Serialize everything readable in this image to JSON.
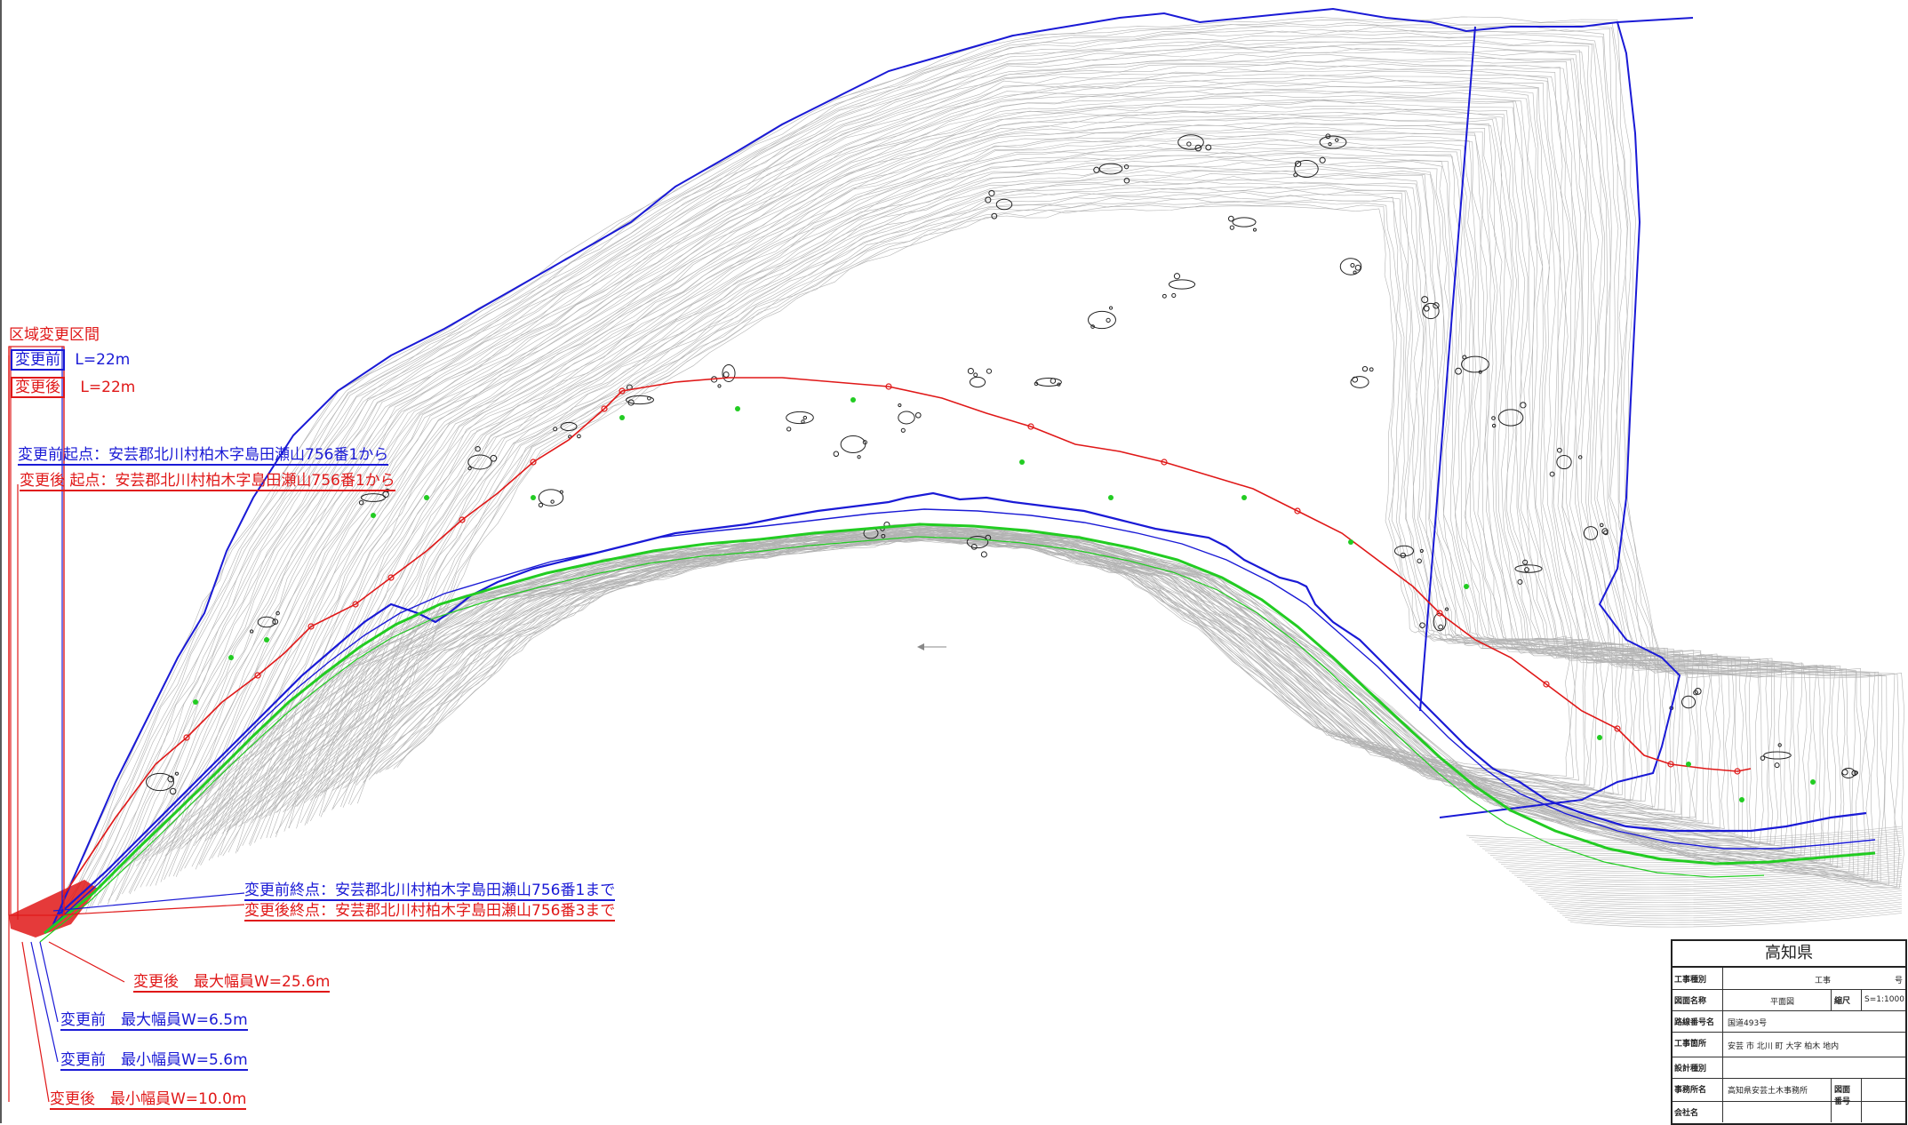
{
  "title_block": {
    "prefecture": "高知県",
    "rows": [
      {
        "key": "工事種別",
        "value": "工事",
        "extra": "号"
      },
      {
        "key": "図面名称",
        "value": "平面図",
        "scale_label": "縮尺",
        "scale_value": "S=1:1000"
      },
      {
        "key": "路線番号名",
        "value": "国道493号"
      },
      {
        "key": "工事箇所",
        "value": "安芸 市 北川 町 大字 柏木 地内"
      },
      {
        "key": "設計種別",
        "value": ""
      },
      {
        "key": "事務所名",
        "value": "高知県安芸土木事務所",
        "drawing_no_label": "図面番号"
      },
      {
        "key": "会社名",
        "value": ""
      }
    ]
  },
  "annotations": {
    "section_title": "区域変更区間",
    "before_length": {
      "tag": "変更前",
      "value": "L=22m"
    },
    "after_length": {
      "tag": "変更後",
      "value": "L=22m"
    },
    "before_start": "変更前起点：安芸郡北川村柏木字島田瀬山756番1から",
    "after_start": "変更後 起点：安芸郡北川村柏木字島田瀬山756番1から",
    "before_end": "変更前終点：安芸郡北川村柏木字島田瀬山756番1まで",
    "after_end": "変更後終点：安芸郡北川村柏木字島田瀬山756番3まで",
    "after_max_width": "変更後　最大幅員W=25.6m",
    "before_max_width": "変更前　最大幅員W=6.5m",
    "before_min_width": "変更前　最小幅員W=5.6m",
    "after_min_width": "変更後　最小幅員W=10.0m"
  },
  "colors": {
    "before": "#1a1ad6",
    "after": "#e01818",
    "road_center": "#22cc22",
    "contour": "#9a9a9a"
  }
}
